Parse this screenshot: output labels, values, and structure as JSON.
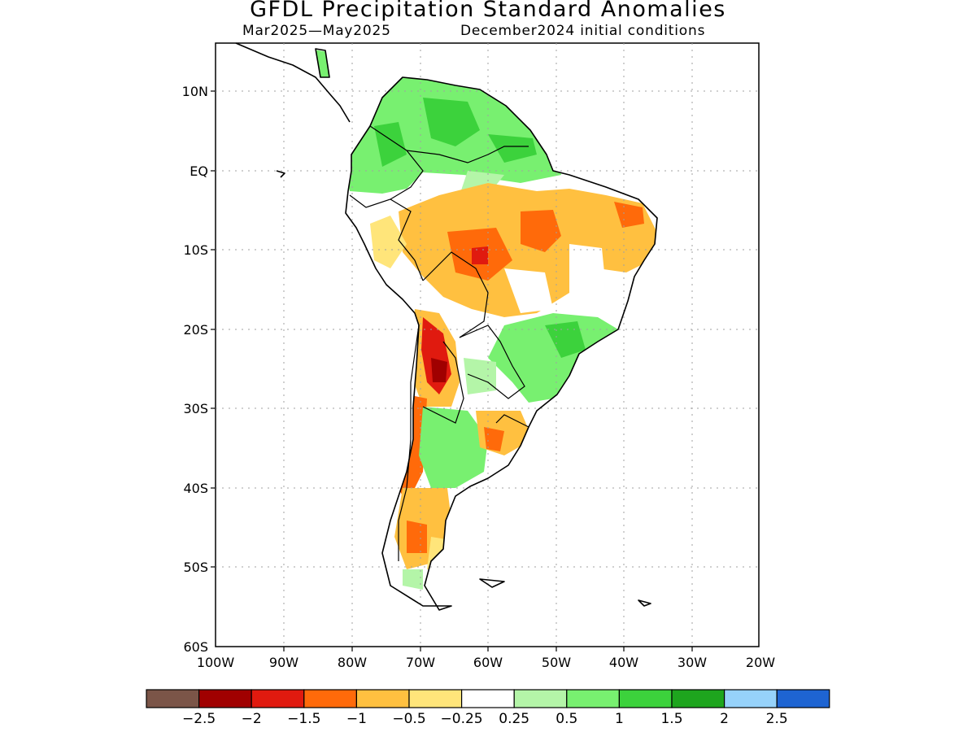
{
  "title": "GFDL Precipitation Standard Anomalies",
  "subtitle_left": "Mar2025—May2025",
  "subtitle_right": "December2024 initial conditions",
  "lat_labels": [
    "10N",
    "EQ",
    "10S",
    "20S",
    "30S",
    "40S",
    "50S",
    "60S"
  ],
  "lon_labels": [
    "100W",
    "90W",
    "80W",
    "70W",
    "60W",
    "50W",
    "40W",
    "30W",
    "20W"
  ],
  "map_extent": {
    "lon_min": -100,
    "lon_max": -20,
    "lat_min": -60,
    "lat_max": 16
  },
  "colorbar": {
    "colors": [
      "#7b5548",
      "#a00000",
      "#e01a0f",
      "#ff6a0a",
      "#ffc040",
      "#ffe57a",
      "#ffffff",
      "#b4f5a8",
      "#78f070",
      "#3cd23c",
      "#1ea51e",
      "#96d2fa",
      "#1e64d2"
    ],
    "labels": [
      "−2.5",
      "−2",
      "−1.5",
      "−1",
      "−0.5",
      "−0.25",
      "0.25",
      "0.5",
      "1",
      "1.5",
      "2",
      "2.5"
    ]
  },
  "colors": {
    "land_outline": "#000000",
    "grid": "#a0a0a0"
  }
}
